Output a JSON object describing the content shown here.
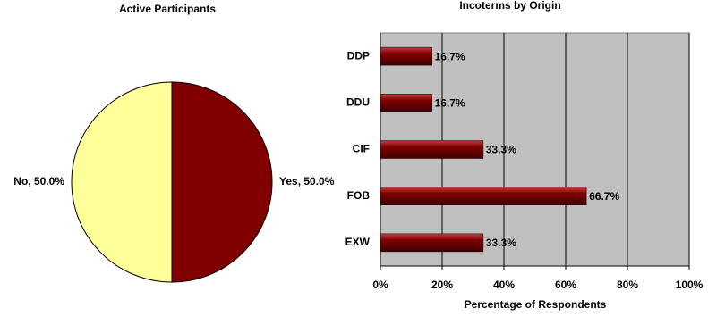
{
  "chart_data": [
    {
      "type": "pie",
      "title": "Active Participants",
      "values": [
        50,
        50
      ],
      "value_labels": [
        "Yes, 50.0%",
        "No, 50.0%"
      ],
      "colors": [
        "#800000",
        "#ffff99"
      ]
    },
    {
      "type": "bar",
      "orientation": "horizontal",
      "title": "Incoterms by Origin",
      "categories": [
        "DDP",
        "DDU",
        "CIF",
        "FOB",
        "EXW"
      ],
      "values": [
        16.7,
        16.7,
        33.3,
        66.7,
        33.3
      ],
      "value_labels": [
        "16.7%",
        "16.7%",
        "33.3%",
        "66.7%",
        "33.3%"
      ],
      "color": "#800000",
      "xlim": [
        0,
        100
      ],
      "xticks": [
        {
          "value": 0,
          "label": "0%"
        },
        {
          "value": 20,
          "label": "20%"
        },
        {
          "value": 40,
          "label": "40%"
        },
        {
          "value": 60,
          "label": "60%"
        },
        {
          "value": 80,
          "label": "80%"
        },
        {
          "value": 100,
          "label": "100%"
        }
      ],
      "xlabel": "Percentage of Respondents",
      "grid": true
    }
  ]
}
